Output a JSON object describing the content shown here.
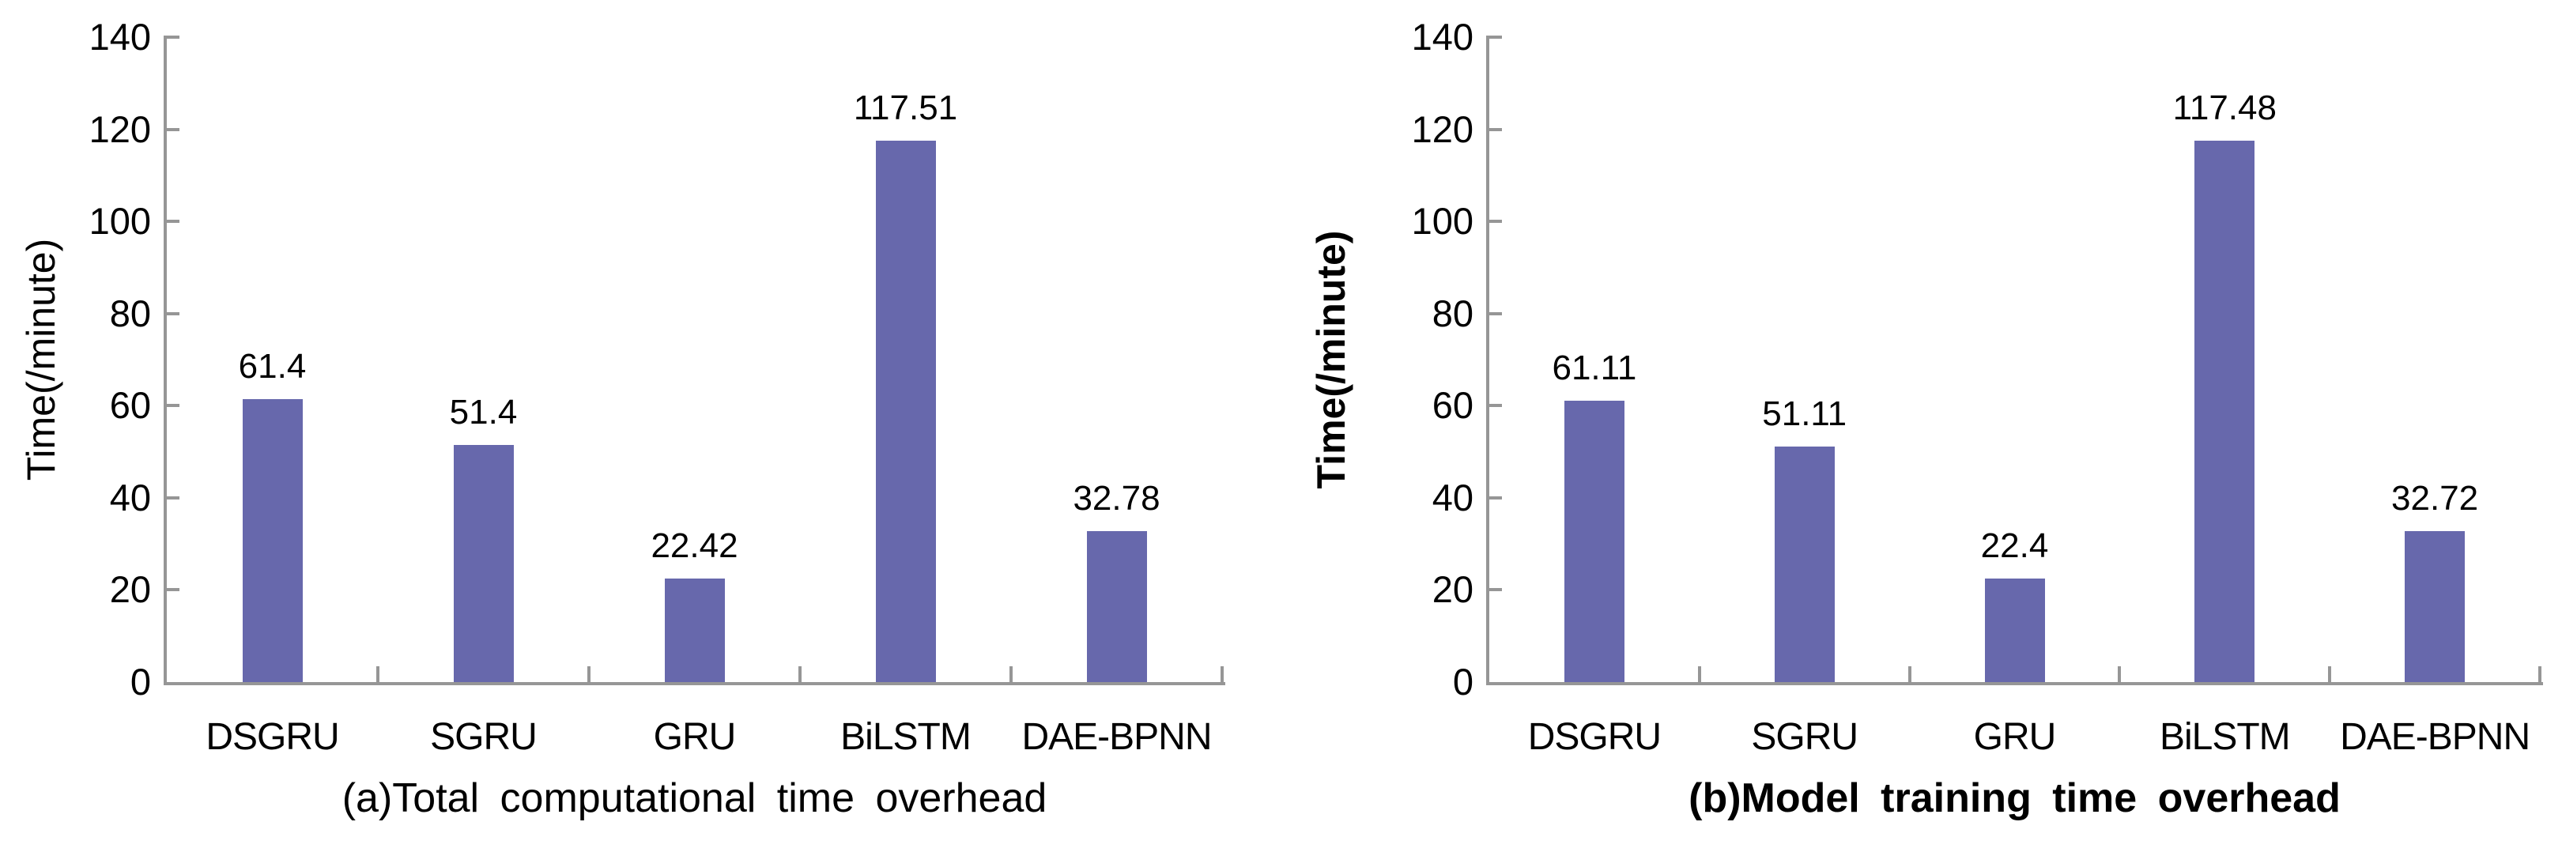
{
  "chart_data": [
    {
      "type": "bar",
      "title": "(a)Total computational time overhead",
      "ylabel": "Time(/minute)",
      "xlabel": "",
      "categories": [
        "DSGRU",
        "SGRU",
        "GRU",
        "BiLSTM",
        "DAE-BPNN"
      ],
      "values": [
        61.4,
        51.4,
        22.42,
        117.51,
        32.78
      ],
      "value_labels": [
        "61.4",
        "51.4",
        "22.42",
        "117.51",
        "32.78"
      ],
      "ylim": [
        0,
        140
      ],
      "yticks": [
        0,
        20,
        40,
        60,
        80,
        100,
        120,
        140
      ],
      "grid": false,
      "legend": "none",
      "bar_color": "#6768AC",
      "axis_color": "#969696",
      "text_color": "#000000"
    },
    {
      "type": "bar",
      "title": "(b)Model training time overhead",
      "ylabel": "Time(/minute)",
      "xlabel": "",
      "categories": [
        "DSGRU",
        "SGRU",
        "GRU",
        "BiLSTM",
        "DAE-BPNN"
      ],
      "values": [
        61.11,
        51.11,
        22.4,
        117.48,
        32.72
      ],
      "value_labels": [
        "61.11",
        "51.11",
        "22.4",
        "117.48",
        "32.72"
      ],
      "ylim": [
        0,
        140
      ],
      "yticks": [
        0,
        20,
        40,
        60,
        80,
        100,
        120,
        140
      ],
      "grid": false,
      "legend": "none",
      "bar_color": "#6768AC",
      "axis_color": "#969696",
      "text_color": "#000000"
    }
  ]
}
